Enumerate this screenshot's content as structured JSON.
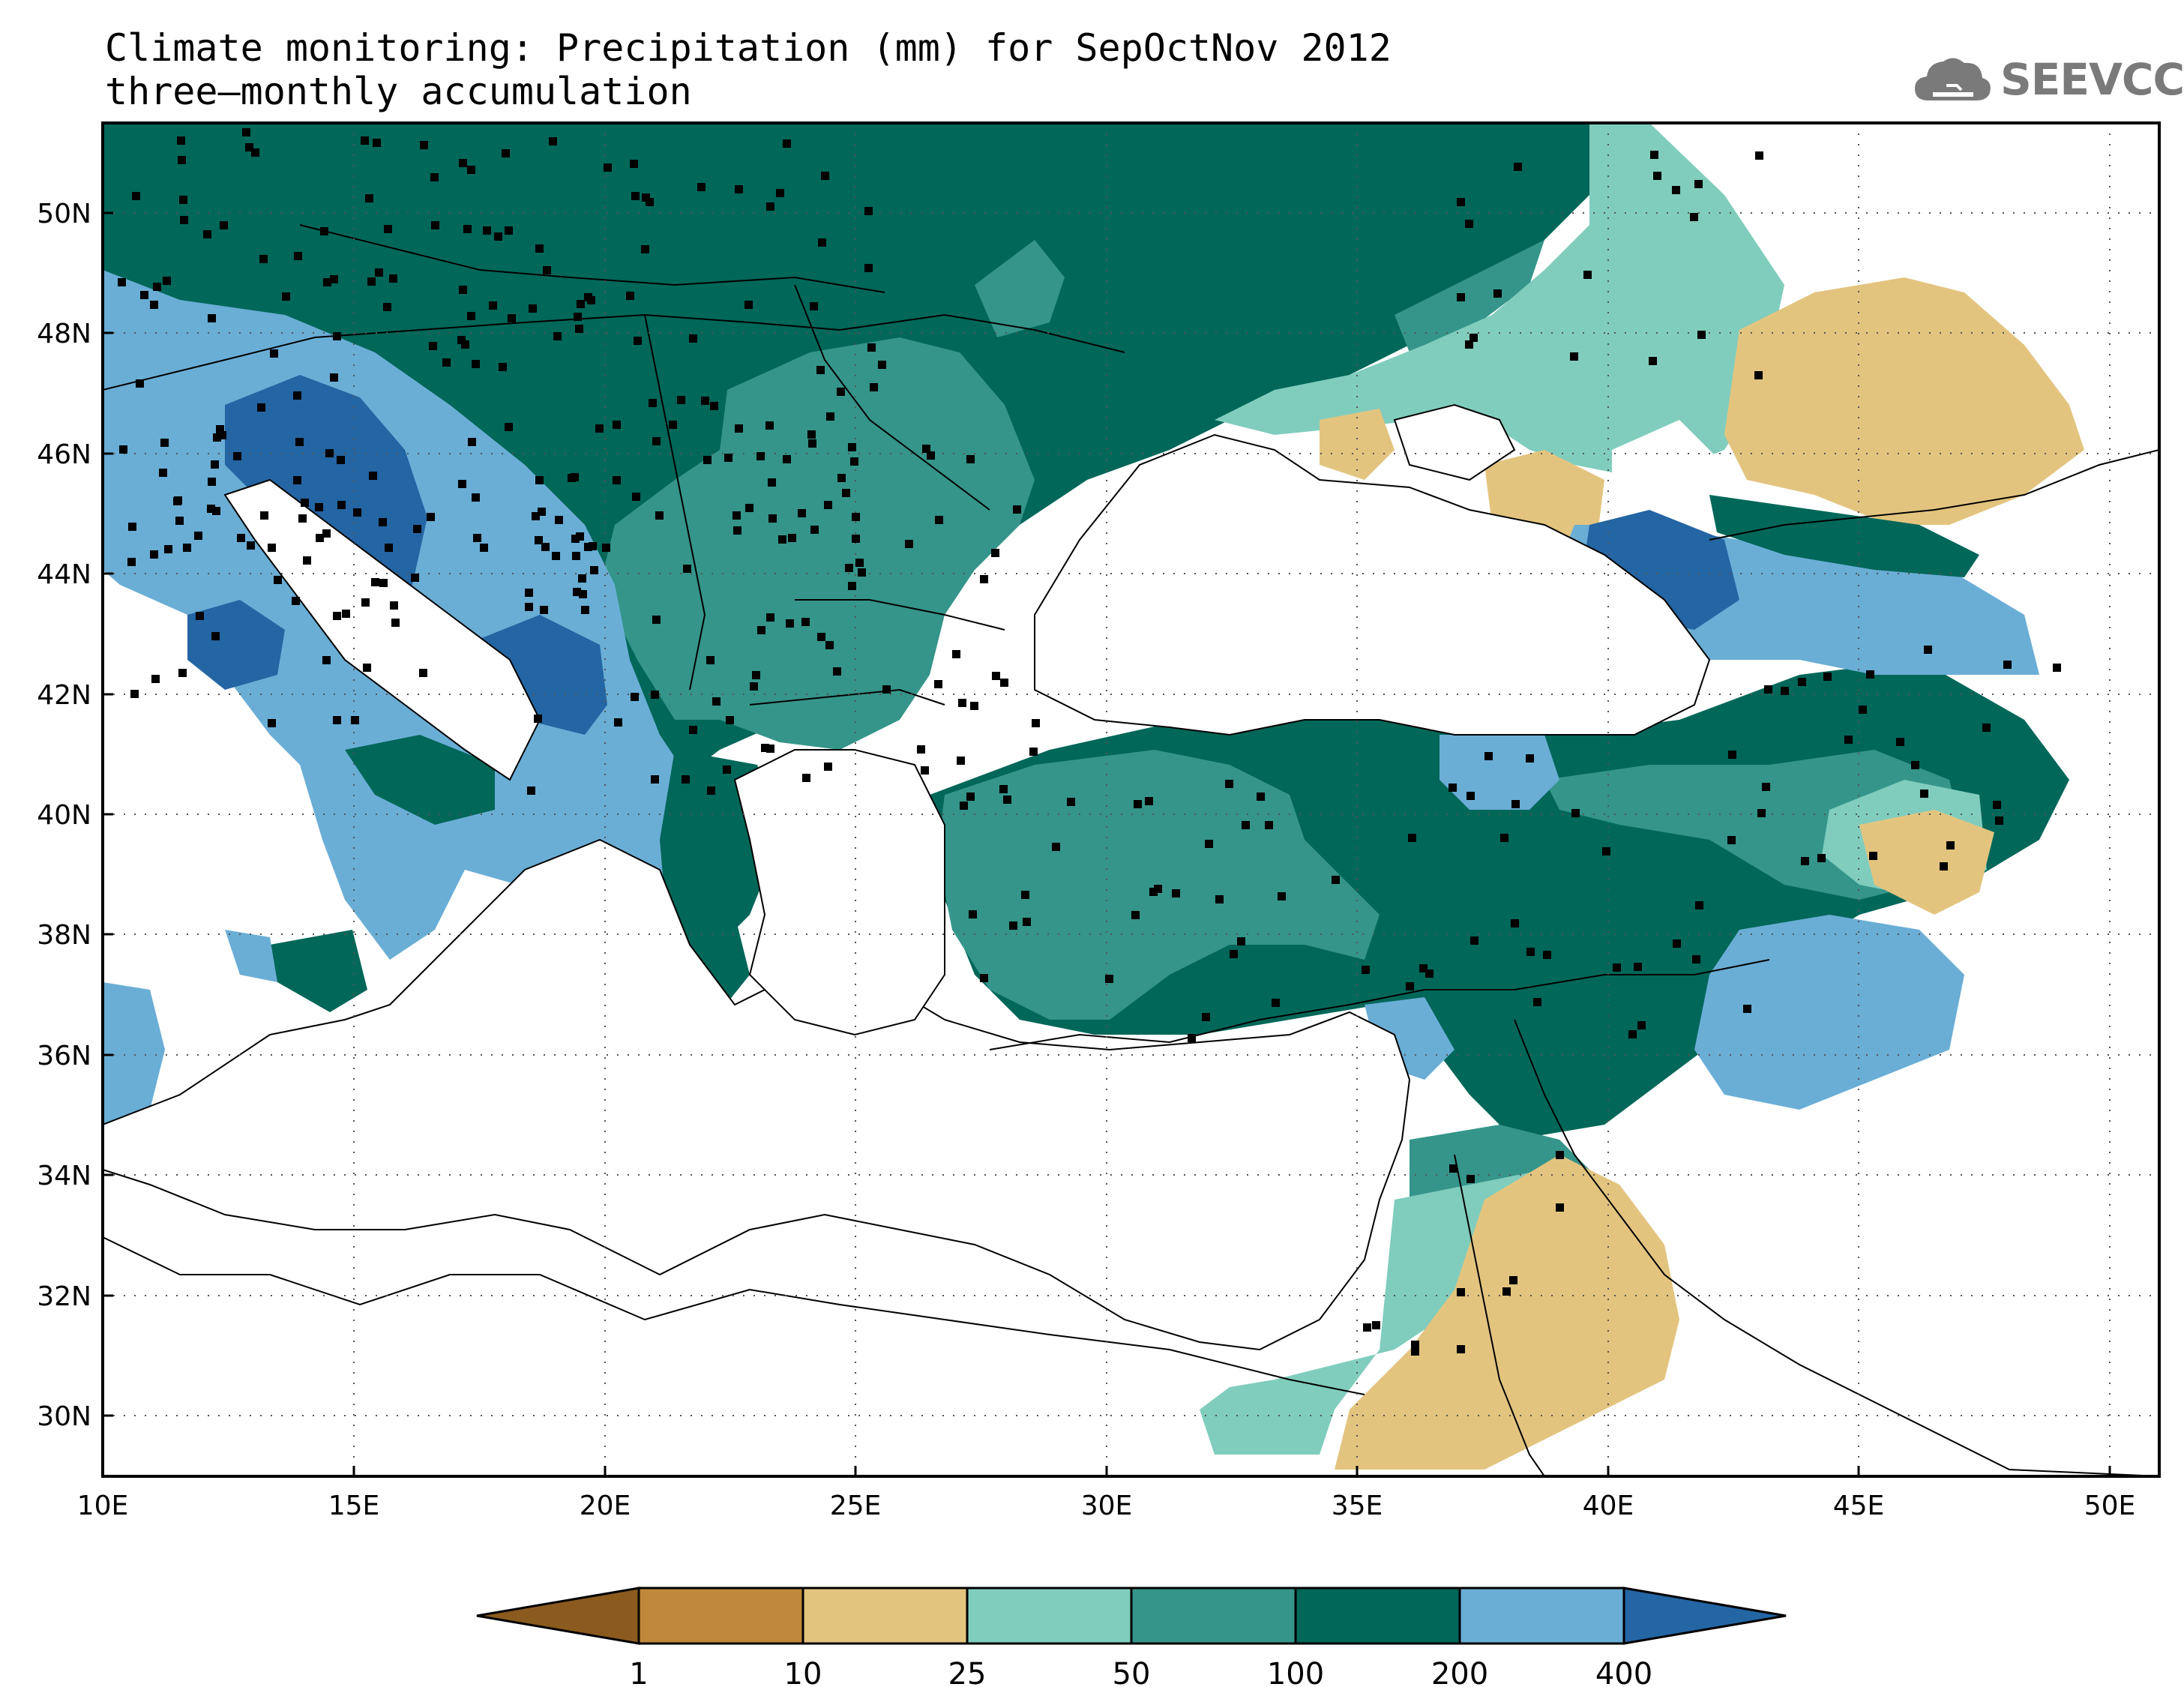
{
  "title": {
    "line1": "Climate monitoring: Precipitation (mm) for SepOctNov 2012",
    "line2": "three–monthly accumulation"
  },
  "logo": {
    "text": "SEEVCCC",
    "icon": "cloud-icon",
    "color": "#7a7a7a"
  },
  "map": {
    "lon_range": [
      10,
      51
    ],
    "lat_range": [
      29,
      51.5
    ],
    "x_ticks": [
      "10E",
      "15E",
      "20E",
      "25E",
      "30E",
      "35E",
      "40E",
      "45E",
      "50E"
    ],
    "y_ticks": [
      "30N",
      "32N",
      "34N",
      "36N",
      "38N",
      "40N",
      "42N",
      "44N",
      "46N",
      "48N",
      "50N"
    ],
    "grid": "dotted",
    "station_marker": "black-square"
  },
  "colorbar": {
    "labels": [
      "1",
      "10",
      "25",
      "50",
      "100",
      "200",
      "400"
    ],
    "colors": [
      "#8a5a1e",
      "#c0883a",
      "#e3c47f",
      "#80cdbd",
      "#35958a",
      "#006759",
      "#6aaed6",
      "#2465a3"
    ],
    "extend": "both"
  },
  "chart_data": {
    "type": "heatmap",
    "title": "Climate monitoring: Precipitation (mm) for SepOctNov 2012",
    "subtitle": "three–monthly accumulation",
    "xlabel": "",
    "ylabel": "",
    "xlim": [
      10,
      51
    ],
    "ylim": [
      29,
      51.5
    ],
    "levels": [
      1,
      10,
      25,
      50,
      100,
      200,
      400
    ]
  }
}
